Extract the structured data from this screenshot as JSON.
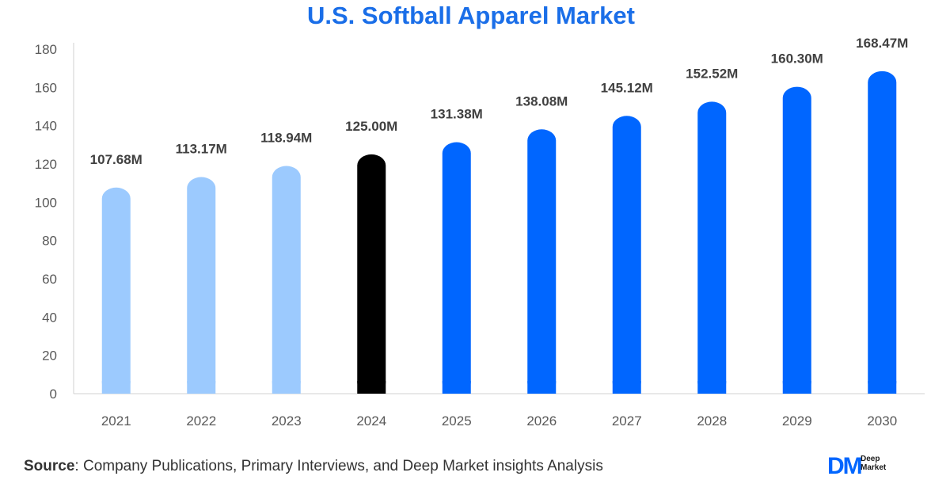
{
  "chart_data": {
    "type": "bar",
    "title": "U.S. Softball Apparel Market",
    "categories": [
      "2021",
      "2022",
      "2023",
      "2024",
      "2025",
      "2026",
      "2027",
      "2028",
      "2029",
      "2030"
    ],
    "values": [
      107.68,
      113.17,
      118.94,
      125.0,
      131.38,
      138.08,
      145.12,
      152.52,
      160.3,
      168.47
    ],
    "data_labels": [
      "107.68M",
      "113.17M",
      "118.94M",
      "125.00M",
      "131.38M",
      "138.08M",
      "145.12M",
      "152.52M",
      "160.30M",
      "168.47M"
    ],
    "ylim": [
      0,
      180
    ],
    "yticks": [
      0,
      20,
      40,
      60,
      80,
      100,
      120,
      140,
      160,
      180
    ],
    "grid": false,
    "legend": "none",
    "bar_colors": [
      "#9ccafe",
      "#9ccafe",
      "#9ccafe",
      "#000000",
      "#0066ff",
      "#0066ff",
      "#0066ff",
      "#0066ff",
      "#0066ff",
      "#0066ff"
    ]
  },
  "colors": {
    "title": "#1a6ee8",
    "historical": "#9ccafe",
    "base_year": "#000000",
    "forecast": "#0066ff",
    "axis": "#d0d0d0"
  },
  "source": {
    "label": "Source",
    "text": ": Company Publications, Primary Interviews, and Deep Market insights Analysis"
  },
  "logo": {
    "mark": "DM",
    "line1": "Deep",
    "line2": "Market"
  }
}
